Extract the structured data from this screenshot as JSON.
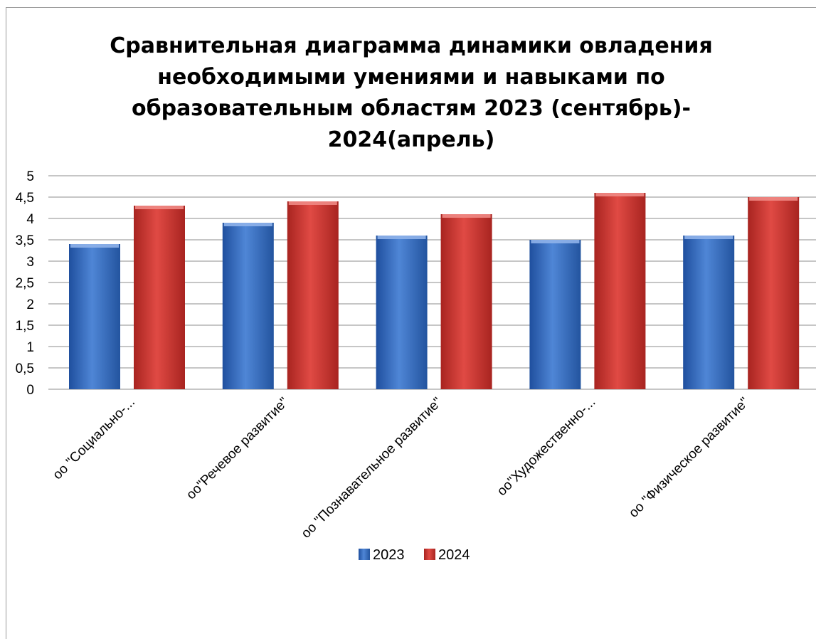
{
  "chart_data": {
    "type": "bar",
    "title_lines": [
      "Сравнительная диаграмма динамики овладения",
      "необходимыми умениями и навыками по",
      "образовательным областям 2023 (сентябрь)-",
      "2024(апрель)"
    ],
    "categories": [
      "оо \"Социально-...",
      "оо\"Речевое развитие\"",
      "оо \"Познавательное развитие\"",
      "оо\"Художественно-...",
      "оо \"Физическое развитие\""
    ],
    "series": [
      {
        "name": "2023",
        "values": [
          3.4,
          3.9,
          3.6,
          3.5,
          3.6
        ],
        "color": "#3c6fc4"
      },
      {
        "name": "2024",
        "values": [
          4.3,
          4.4,
          4.1,
          4.6,
          4.5
        ],
        "color": "#d23a36"
      }
    ],
    "y_ticks": [
      "0",
      "0,5",
      "1",
      "1,5",
      "2",
      "2,5",
      "3",
      "3,5",
      "4",
      "4,5",
      "5"
    ],
    "ylim": [
      0,
      5
    ],
    "grid": true,
    "legend": {
      "position": "bottom",
      "items": [
        "2023",
        "2024"
      ]
    }
  }
}
